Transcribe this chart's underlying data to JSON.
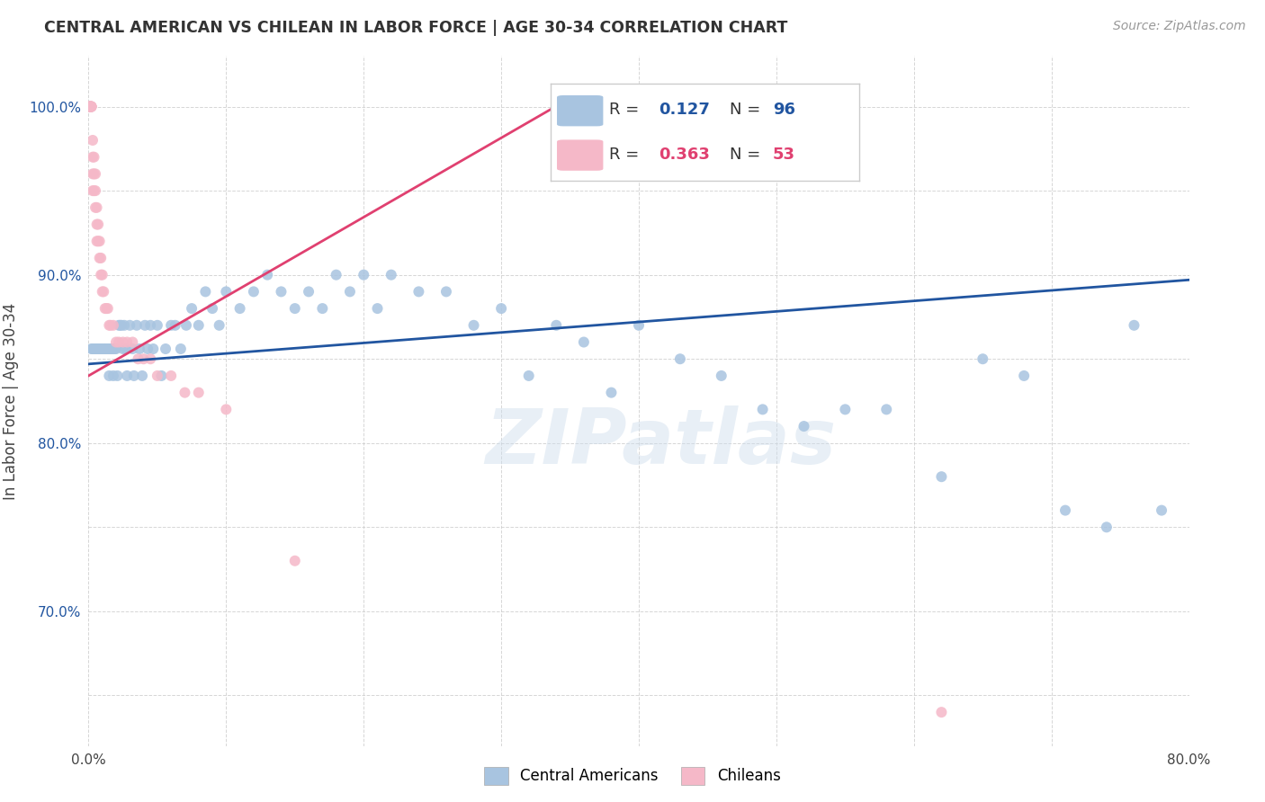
{
  "title": "CENTRAL AMERICAN VS CHILEAN IN LABOR FORCE | AGE 30-34 CORRELATION CHART",
  "source": "Source: ZipAtlas.com",
  "ylabel": "In Labor Force | Age 30-34",
  "xlim": [
    0.0,
    0.8
  ],
  "ylim": [
    0.62,
    1.03
  ],
  "xticks": [
    0.0,
    0.1,
    0.2,
    0.3,
    0.4,
    0.5,
    0.6,
    0.7,
    0.8
  ],
  "xticklabels": [
    "0.0%",
    "",
    "",
    "",
    "",
    "",
    "",
    "",
    "80.0%"
  ],
  "yticks": [
    0.65,
    0.7,
    0.75,
    0.8,
    0.85,
    0.9,
    0.95,
    1.0
  ],
  "yticklabels": [
    "",
    "70.0%",
    "",
    "80.0%",
    "",
    "90.0%",
    "",
    "100.0%"
  ],
  "blue_color": "#a8c4e0",
  "pink_color": "#f5b8c8",
  "blue_line_color": "#2155a0",
  "pink_line_color": "#e04070",
  "R_blue": 0.127,
  "N_blue": 96,
  "R_pink": 0.363,
  "N_pink": 53,
  "legend_blue_label": "Central Americans",
  "legend_pink_label": "Chileans",
  "watermark": "ZIPatlas",
  "blue_scatter_x": [
    0.002,
    0.003,
    0.004,
    0.005,
    0.005,
    0.006,
    0.006,
    0.007,
    0.007,
    0.008,
    0.008,
    0.009,
    0.009,
    0.01,
    0.01,
    0.011,
    0.011,
    0.012,
    0.012,
    0.013,
    0.013,
    0.014,
    0.014,
    0.015,
    0.015,
    0.016,
    0.017,
    0.018,
    0.018,
    0.019,
    0.02,
    0.021,
    0.022,
    0.023,
    0.024,
    0.025,
    0.026,
    0.027,
    0.028,
    0.03,
    0.032,
    0.033,
    0.035,
    0.037,
    0.039,
    0.041,
    0.043,
    0.045,
    0.047,
    0.05,
    0.053,
    0.056,
    0.06,
    0.063,
    0.067,
    0.071,
    0.075,
    0.08,
    0.085,
    0.09,
    0.095,
    0.1,
    0.11,
    0.12,
    0.13,
    0.14,
    0.15,
    0.16,
    0.17,
    0.18,
    0.19,
    0.2,
    0.21,
    0.22,
    0.24,
    0.26,
    0.28,
    0.3,
    0.32,
    0.34,
    0.36,
    0.38,
    0.4,
    0.43,
    0.46,
    0.49,
    0.52,
    0.55,
    0.58,
    0.62,
    0.65,
    0.68,
    0.71,
    0.74,
    0.76,
    0.78
  ],
  "blue_scatter_y": [
    0.856,
    0.856,
    0.856,
    0.856,
    0.856,
    0.856,
    0.856,
    0.856,
    0.856,
    0.856,
    0.856,
    0.856,
    0.856,
    0.856,
    0.856,
    0.856,
    0.856,
    0.856,
    0.856,
    0.856,
    0.856,
    0.856,
    0.856,
    0.856,
    0.84,
    0.856,
    0.856,
    0.856,
    0.84,
    0.856,
    0.856,
    0.84,
    0.87,
    0.87,
    0.87,
    0.856,
    0.87,
    0.856,
    0.84,
    0.87,
    0.856,
    0.84,
    0.87,
    0.856,
    0.84,
    0.87,
    0.856,
    0.87,
    0.856,
    0.87,
    0.84,
    0.856,
    0.87,
    0.87,
    0.856,
    0.87,
    0.88,
    0.87,
    0.89,
    0.88,
    0.87,
    0.89,
    0.88,
    0.89,
    0.9,
    0.89,
    0.88,
    0.89,
    0.88,
    0.9,
    0.89,
    0.9,
    0.88,
    0.9,
    0.89,
    0.89,
    0.87,
    0.88,
    0.84,
    0.87,
    0.86,
    0.83,
    0.87,
    0.85,
    0.84,
    0.82,
    0.81,
    0.82,
    0.82,
    0.78,
    0.85,
    0.84,
    0.76,
    0.75,
    0.87,
    0.76
  ],
  "pink_scatter_x": [
    0.001,
    0.001,
    0.001,
    0.001,
    0.001,
    0.002,
    0.002,
    0.002,
    0.002,
    0.002,
    0.003,
    0.003,
    0.003,
    0.003,
    0.004,
    0.004,
    0.004,
    0.005,
    0.005,
    0.005,
    0.006,
    0.006,
    0.006,
    0.007,
    0.007,
    0.008,
    0.008,
    0.009,
    0.009,
    0.01,
    0.01,
    0.011,
    0.012,
    0.013,
    0.014,
    0.015,
    0.016,
    0.018,
    0.02,
    0.022,
    0.025,
    0.028,
    0.032,
    0.036,
    0.04,
    0.045,
    0.05,
    0.06,
    0.07,
    0.08,
    0.1,
    0.15,
    0.62
  ],
  "pink_scatter_y": [
    1.0,
    1.0,
    1.0,
    1.0,
    1.0,
    1.0,
    1.0,
    1.0,
    1.0,
    1.0,
    0.98,
    0.97,
    0.96,
    0.95,
    0.97,
    0.96,
    0.95,
    0.96,
    0.95,
    0.94,
    0.94,
    0.93,
    0.92,
    0.93,
    0.92,
    0.92,
    0.91,
    0.91,
    0.9,
    0.9,
    0.89,
    0.89,
    0.88,
    0.88,
    0.88,
    0.87,
    0.87,
    0.87,
    0.86,
    0.86,
    0.86,
    0.86,
    0.86,
    0.85,
    0.85,
    0.85,
    0.84,
    0.84,
    0.83,
    0.83,
    0.82,
    0.73,
    0.64
  ],
  "blue_line_x": [
    0.0,
    0.8
  ],
  "blue_line_y": [
    0.847,
    0.897
  ],
  "pink_line_x": [
    0.0,
    0.35
  ],
  "pink_line_y": [
    0.84,
    1.005
  ]
}
